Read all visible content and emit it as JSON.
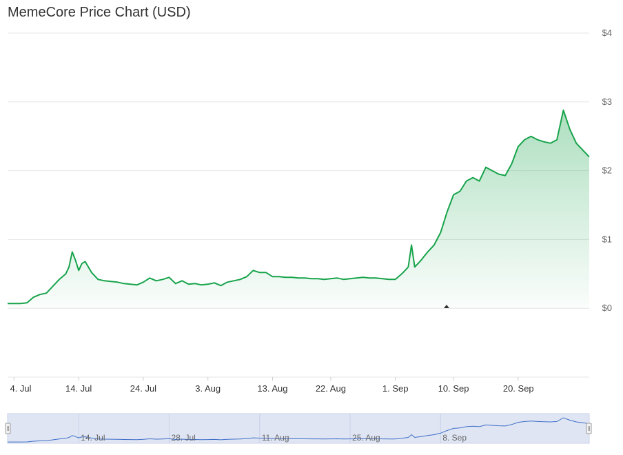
{
  "chart_data": {
    "type": "area",
    "title": "MemeCore Price Chart (USD)",
    "xlabel": "",
    "ylabel": "",
    "x_range": [
      "2025-07-03",
      "2025-09-20"
    ],
    "ylim": [
      -1,
      4
    ],
    "y_ticks": [
      {
        "value": 0,
        "label": "$0"
      },
      {
        "value": 1,
        "label": "$1"
      },
      {
        "value": 2,
        "label": "$2"
      },
      {
        "value": 3,
        "label": "$3"
      },
      {
        "value": 4,
        "label": "$4"
      }
    ],
    "x_ticks": [
      {
        "date": "2025-07-04",
        "label": "4. Jul"
      },
      {
        "date": "2025-07-14",
        "label": "14. Jul"
      },
      {
        "date": "2025-07-24",
        "label": "24. Jul"
      },
      {
        "date": "2025-08-03",
        "label": "3. Aug"
      },
      {
        "date": "2025-08-13",
        "label": "13. Aug"
      },
      {
        "date": "2025-08-22",
        "label": "22. Aug"
      },
      {
        "date": "2025-09-01",
        "label": "1. Sep"
      },
      {
        "date": "2025-09-10",
        "label": "10. Sep"
      },
      {
        "date": "2025-09-20",
        "label": "20. Sep"
      }
    ],
    "navigator_ticks": [
      {
        "date": "2025-07-14",
        "label": "14. Jul"
      },
      {
        "date": "2025-07-28",
        "label": "28. Jul"
      },
      {
        "date": "2025-08-11",
        "label": "11. Aug"
      },
      {
        "date": "2025-08-25",
        "label": "25. Aug"
      },
      {
        "date": "2025-09-08",
        "label": "8. Sep"
      }
    ],
    "grid": true,
    "series": [
      {
        "color": "#16a34a",
        "points": [
          [
            "2025-07-03",
            0.07
          ],
          [
            "2025-07-04",
            0.07
          ],
          [
            "2025-07-05",
            0.07
          ],
          [
            "2025-07-06",
            0.08
          ],
          [
            "2025-07-07",
            0.16
          ],
          [
            "2025-07-08",
            0.2
          ],
          [
            "2025-07-09",
            0.22
          ],
          [
            "2025-07-10",
            0.32
          ],
          [
            "2025-07-11",
            0.42
          ],
          [
            "2025-07-12",
            0.5
          ],
          [
            "2025-07-12T12",
            0.6
          ],
          [
            "2025-07-13",
            0.82
          ],
          [
            "2025-07-13T12",
            0.7
          ],
          [
            "2025-07-14",
            0.55
          ],
          [
            "2025-07-14T12",
            0.65
          ],
          [
            "2025-07-15",
            0.68
          ],
          [
            "2025-07-16",
            0.52
          ],
          [
            "2025-07-17",
            0.42
          ],
          [
            "2025-07-18",
            0.4
          ],
          [
            "2025-07-19",
            0.39
          ],
          [
            "2025-07-20",
            0.38
          ],
          [
            "2025-07-21",
            0.36
          ],
          [
            "2025-07-22",
            0.35
          ],
          [
            "2025-07-23",
            0.34
          ],
          [
            "2025-07-24",
            0.38
          ],
          [
            "2025-07-25",
            0.44
          ],
          [
            "2025-07-26",
            0.4
          ],
          [
            "2025-07-27",
            0.42
          ],
          [
            "2025-07-28",
            0.45
          ],
          [
            "2025-07-29",
            0.36
          ],
          [
            "2025-07-30",
            0.4
          ],
          [
            "2025-07-31",
            0.35
          ],
          [
            "2025-08-01",
            0.36
          ],
          [
            "2025-08-02",
            0.34
          ],
          [
            "2025-08-03",
            0.35
          ],
          [
            "2025-08-04",
            0.37
          ],
          [
            "2025-08-05",
            0.33
          ],
          [
            "2025-08-06",
            0.38
          ],
          [
            "2025-08-07",
            0.4
          ],
          [
            "2025-08-08",
            0.42
          ],
          [
            "2025-08-09",
            0.46
          ],
          [
            "2025-08-10",
            0.55
          ],
          [
            "2025-08-11",
            0.52
          ],
          [
            "2025-08-12",
            0.52
          ],
          [
            "2025-08-13",
            0.46
          ],
          [
            "2025-08-14",
            0.46
          ],
          [
            "2025-08-15",
            0.45
          ],
          [
            "2025-08-16",
            0.45
          ],
          [
            "2025-08-17",
            0.44
          ],
          [
            "2025-08-18",
            0.44
          ],
          [
            "2025-08-19",
            0.43
          ],
          [
            "2025-08-20",
            0.43
          ],
          [
            "2025-08-21",
            0.42
          ],
          [
            "2025-08-22",
            0.43
          ],
          [
            "2025-08-23",
            0.44
          ],
          [
            "2025-08-24",
            0.42
          ],
          [
            "2025-08-25",
            0.43
          ],
          [
            "2025-08-26",
            0.44
          ],
          [
            "2025-08-27",
            0.45
          ],
          [
            "2025-08-28",
            0.44
          ],
          [
            "2025-08-29",
            0.44
          ],
          [
            "2025-08-30",
            0.43
          ],
          [
            "2025-08-31",
            0.42
          ],
          [
            "2025-09-01",
            0.42
          ],
          [
            "2025-09-02",
            0.5
          ],
          [
            "2025-09-03",
            0.6
          ],
          [
            "2025-09-03T12",
            0.92
          ],
          [
            "2025-09-04",
            0.6
          ],
          [
            "2025-09-05",
            0.7
          ],
          [
            "2025-09-06",
            0.82
          ],
          [
            "2025-09-07",
            0.92
          ],
          [
            "2025-09-08",
            1.1
          ],
          [
            "2025-09-09",
            1.4
          ],
          [
            "2025-09-10",
            1.65
          ],
          [
            "2025-09-11",
            1.7
          ],
          [
            "2025-09-12",
            1.85
          ],
          [
            "2025-09-13",
            1.9
          ],
          [
            "2025-09-14",
            1.85
          ],
          [
            "2025-09-15",
            2.05
          ],
          [
            "2025-09-16",
            2.0
          ],
          [
            "2025-09-17",
            1.95
          ],
          [
            "2025-09-18",
            1.93
          ],
          [
            "2025-09-19",
            2.1
          ],
          [
            "2025-09-20",
            2.35
          ],
          [
            "2025-09-21",
            2.45
          ],
          [
            "2025-09-22",
            2.5
          ],
          [
            "2025-09-23",
            2.45
          ],
          [
            "2025-09-24",
            2.42
          ],
          [
            "2025-09-25",
            2.4
          ],
          [
            "2025-09-26",
            2.45
          ],
          [
            "2025-09-27",
            2.88
          ],
          [
            "2025-09-28",
            2.6
          ],
          [
            "2025-09-29",
            2.4
          ],
          [
            "2025-09-30",
            2.3
          ],
          [
            "2025-10-01",
            2.2
          ]
        ]
      }
    ]
  }
}
